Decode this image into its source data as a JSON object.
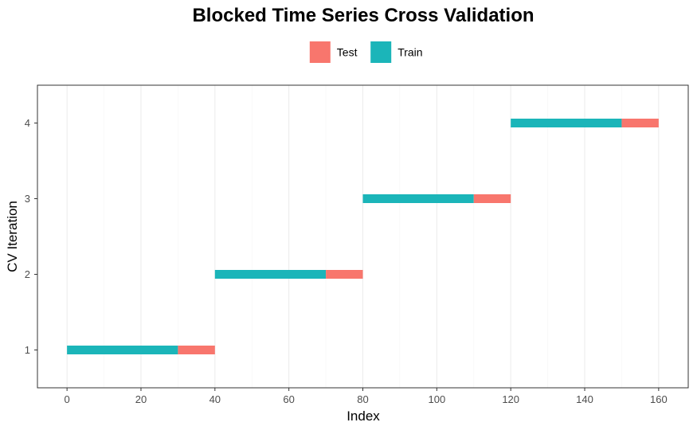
{
  "chart_data": {
    "type": "bar",
    "title": "Blocked Time Series Cross Validation",
    "xlabel": "Index",
    "ylabel": "CV Iteration",
    "xlim": [
      -8,
      168
    ],
    "ylim": [
      0.5,
      4.5
    ],
    "x_ticks": [
      0,
      20,
      40,
      60,
      80,
      100,
      120,
      140,
      160
    ],
    "y_ticks": [
      1,
      2,
      3,
      4
    ],
    "grid": "vertical",
    "legend_position": "top",
    "legend": [
      {
        "name": "Test",
        "color": "#F8766D"
      },
      {
        "name": "Train",
        "color": "#1BB5B9"
      }
    ],
    "segments": [
      {
        "iteration": 1,
        "set": "Train",
        "start": 0,
        "end": 30
      },
      {
        "iteration": 1,
        "set": "Test",
        "start": 30,
        "end": 40
      },
      {
        "iteration": 2,
        "set": "Train",
        "start": 40,
        "end": 70
      },
      {
        "iteration": 2,
        "set": "Test",
        "start": 70,
        "end": 80
      },
      {
        "iteration": 3,
        "set": "Train",
        "start": 80,
        "end": 110
      },
      {
        "iteration": 3,
        "set": "Test",
        "start": 110,
        "end": 120
      },
      {
        "iteration": 4,
        "set": "Train",
        "start": 120,
        "end": 150
      },
      {
        "iteration": 4,
        "set": "Test",
        "start": 150,
        "end": 160
      }
    ]
  }
}
